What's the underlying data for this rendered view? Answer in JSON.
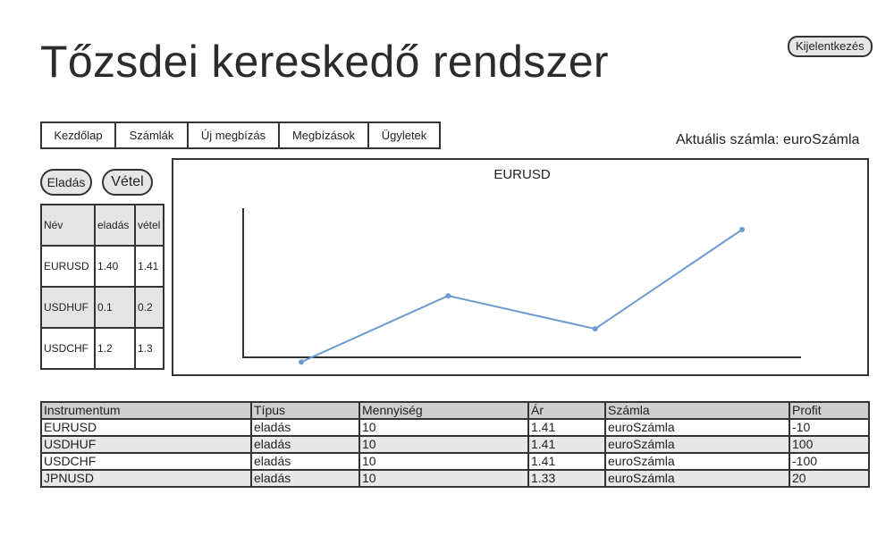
{
  "header": {
    "title": "Tőzsdei kereskedő rendszer",
    "logout_label": "Kijelentkezés"
  },
  "nav": {
    "tabs": [
      {
        "label": "Kezdőlap"
      },
      {
        "label": "Számlák"
      },
      {
        "label": "Új megbízás"
      },
      {
        "label": "Megbízások"
      },
      {
        "label": "Ügyletek"
      }
    ]
  },
  "account": {
    "label": "Aktuális számla: euroSzámla"
  },
  "actions": {
    "sell_label": "Eladás",
    "buy_label": "Vétel"
  },
  "quotes": {
    "headers": [
      "Név",
      "eladás",
      "vétel"
    ],
    "rows": [
      [
        "EURUSD",
        "1.40",
        "1.41"
      ],
      [
        "USDHUF",
        "0.1",
        "0.2"
      ],
      [
        "USDCHF",
        "1.2",
        "1.3"
      ]
    ]
  },
  "chart_data": {
    "type": "line",
    "title": "EURUSD",
    "xlabel": "",
    "ylabel": "",
    "x": [
      1,
      2,
      3,
      4
    ],
    "values": [
      1.0,
      4.4,
      2.7,
      7.8
    ],
    "ylim": [
      0,
      10
    ],
    "grid": false,
    "line_color": "#6b9bd1"
  },
  "orders": {
    "headers": [
      "Instrumentum",
      "Típus",
      "Mennyiség",
      "Ár",
      "Számla",
      "Profit"
    ],
    "rows": [
      [
        "EURUSD",
        "eladás",
        "10",
        "1.41",
        "euroSzámla",
        "-10"
      ],
      [
        "USDHUF",
        "eladás",
        "10",
        "1.41",
        "euroSzámla",
        "100"
      ],
      [
        "USDCHF",
        "eladás",
        "10",
        "1.41",
        "euroSzámla",
        "-100"
      ],
      [
        "JPNUSD",
        "eladás",
        "10",
        "1.33",
        "euroSzámla",
        "20"
      ]
    ]
  }
}
